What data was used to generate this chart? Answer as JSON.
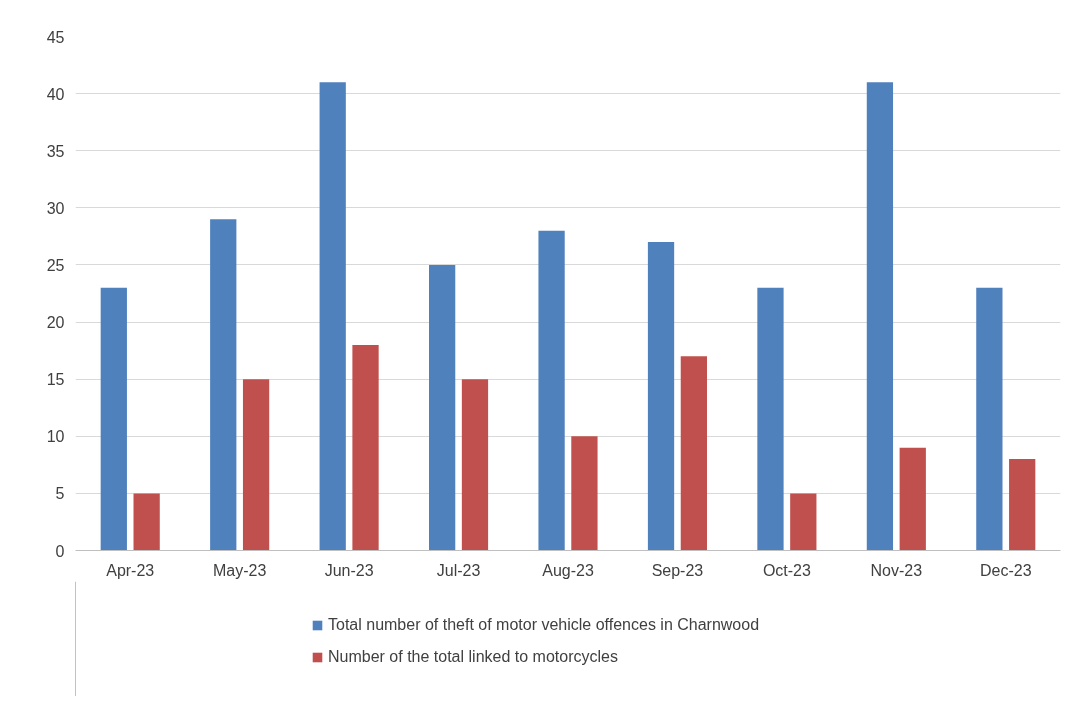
{
  "chart_data": {
    "type": "bar",
    "categories": [
      "Apr-23",
      "May-23",
      "Jun-23",
      "Jul-23",
      "Aug-23",
      "Sep-23",
      "Oct-23",
      "Nov-23",
      "Dec-23"
    ],
    "series": [
      {
        "name": "Total number of theft of motor vehicle offences in Charnwood",
        "color": "#4f81bd",
        "values": [
          23,
          29,
          41,
          25,
          28,
          27,
          23,
          41,
          23
        ]
      },
      {
        "name": "Number of the total linked to motorcycles",
        "color": "#c0504d",
        "values": [
          5,
          15,
          18,
          15,
          10,
          17,
          5,
          9,
          8
        ]
      }
    ],
    "ylim": [
      0,
      45
    ],
    "yticks": [
      0,
      5,
      10,
      15,
      20,
      25,
      30,
      35,
      40,
      45
    ],
    "grid": "y",
    "legend": "bottom"
  }
}
